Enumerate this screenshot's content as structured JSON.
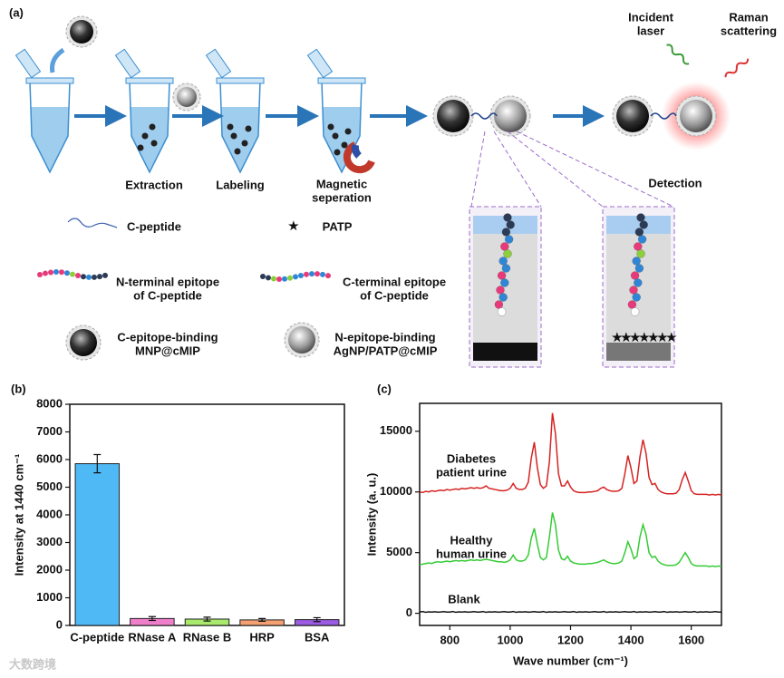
{
  "panel_a": {
    "label": "(a)",
    "texts": [
      [
        "Extraction"
      ],
      [
        "Labeling"
      ],
      [
        "Magnetic",
        "seperation"
      ],
      [
        "Detection"
      ],
      [
        "Incident",
        "laser"
      ],
      [
        "Raman",
        "scattering"
      ],
      [
        "C-peptide"
      ],
      [
        "PATP"
      ],
      [
        "N-terminal epitope",
        "of C-peptide"
      ],
      [
        "C-terminal epitope",
        "of C-peptide"
      ],
      [
        "C-epitope-binding",
        "MNP@cMIP"
      ],
      [
        "N-epitope-binding",
        "AgNP/PATP@cMIP"
      ]
    ]
  },
  "watermark": "大数跨境",
  "chart_data": [
    {
      "type": "bar",
      "label": "(b)",
      "y_label": "Intensity at 1440 cm⁻¹",
      "categories": [
        "C-peptide",
        "RNase A",
        "RNase B",
        "HRP",
        "BSA"
      ],
      "values": [
        5850,
        250,
        230,
        200,
        210
      ],
      "errors": [
        330,
        70,
        70,
        50,
        70
      ],
      "colors": [
        "#4fb9f6",
        "#f07fcb",
        "#a9e96c",
        "#f5a072",
        "#9b5be2"
      ],
      "ylim": [
        0,
        8000
      ],
      "yticks": [
        0,
        1000,
        2000,
        3000,
        4000,
        5000,
        6000,
        7000,
        8000
      ]
    },
    {
      "type": "line",
      "label": "(c)",
      "y_label": "Intensity (a. u.)",
      "x_label": "Wave number (cm⁻¹)",
      "xlim": [
        700,
        1700
      ],
      "xticks": [
        800,
        1000,
        1200,
        1400,
        1600
      ],
      "ylim": [
        -1000,
        17300
      ],
      "yticks": [
        0,
        5000,
        10000,
        15000
      ],
      "annotations": [
        [
          "Diabetes",
          "patient urine"
        ],
        [
          "Healthy",
          "human urine"
        ],
        [
          "Blank"
        ]
      ],
      "x": [
        700,
        710,
        720,
        730,
        740,
        750,
        760,
        770,
        780,
        790,
        800,
        810,
        820,
        830,
        840,
        850,
        860,
        870,
        880,
        890,
        900,
        910,
        920,
        930,
        940,
        950,
        960,
        970,
        980,
        990,
        1000,
        1010,
        1020,
        1030,
        1040,
        1050,
        1060,
        1070,
        1080,
        1090,
        1100,
        1110,
        1120,
        1130,
        1140,
        1150,
        1160,
        1170,
        1180,
        1190,
        1200,
        1210,
        1220,
        1230,
        1240,
        1250,
        1260,
        1270,
        1280,
        1290,
        1300,
        1310,
        1320,
        1330,
        1340,
        1350,
        1360,
        1370,
        1380,
        1390,
        1400,
        1410,
        1420,
        1430,
        1440,
        1450,
        1460,
        1470,
        1480,
        1490,
        1500,
        1510,
        1520,
        1530,
        1540,
        1550,
        1560,
        1570,
        1580,
        1590,
        1600,
        1610,
        1620,
        1630,
        1640,
        1650,
        1660,
        1670,
        1680,
        1690,
        1700
      ],
      "series": [
        {
          "color": "#d62222",
          "values": [
            10000,
            9950,
            10050,
            10000,
            10100,
            10050,
            10100,
            10150,
            10100,
            10200,
            10150,
            10200,
            10250,
            10200,
            10300,
            10250,
            10300,
            10350,
            10300,
            10350,
            10300,
            10350,
            10500,
            10300,
            10250,
            10200,
            10150,
            10100,
            10100,
            10150,
            10300,
            10700,
            10300,
            10200,
            10200,
            10300,
            10800,
            12800,
            14100,
            12000,
            10600,
            10300,
            10500,
            12500,
            16500,
            14800,
            11500,
            10500,
            10500,
            10900,
            10400,
            10100,
            10000,
            9950,
            9950,
            9950,
            10000,
            10000,
            10050,
            10100,
            10300,
            10400,
            10200,
            10100,
            10050,
            10050,
            10100,
            10300,
            11500,
            13000,
            12000,
            10700,
            10900,
            12900,
            14300,
            13200,
            11200,
            10600,
            10700,
            10200,
            10000,
            9900,
            9850,
            9850,
            9850,
            9900,
            10200,
            11000,
            11600,
            10900,
            10100,
            9850,
            9800,
            9800,
            9800,
            9800,
            9750,
            9800,
            9750,
            9800,
            9750
          ]
        },
        {
          "color": "#35cc35",
          "values": [
            4000,
            4050,
            4100,
            4150,
            4100,
            4200,
            4250,
            4200,
            4250,
            4300,
            4250,
            4300,
            4350,
            4300,
            4350,
            4300,
            4350,
            4400,
            4350,
            4400,
            4350,
            4400,
            4450,
            4400,
            4350,
            4300,
            4250,
            4250,
            4200,
            4250,
            4400,
            4800,
            4400,
            4300,
            4300,
            4400,
            4800,
            6200,
            7000,
            5700,
            4600,
            4400,
            4600,
            6300,
            8300,
            7300,
            5200,
            4500,
            4400,
            4700,
            4300,
            4150,
            4100,
            4050,
            4050,
            4050,
            4100,
            4100,
            4150,
            4200,
            4300,
            4400,
            4250,
            4150,
            4100,
            4100,
            4150,
            4300,
            5000,
            5900,
            5300,
            4500,
            4700,
            6300,
            7300,
            6500,
            5000,
            4600,
            4700,
            4300,
            4100,
            4000,
            3950,
            3950,
            3950,
            4000,
            4200,
            4600,
            5000,
            4600,
            4100,
            3950,
            3900,
            3900,
            3900,
            3900,
            3850,
            3900,
            3850,
            3900,
            3850
          ]
        },
        {
          "color": "#111111",
          "values": [
            100,
            150,
            80,
            120,
            100,
            130,
            90,
            110,
            140,
            100,
            100,
            150,
            80,
            120,
            100,
            130,
            90,
            110,
            140,
            100,
            100,
            150,
            80,
            120,
            100,
            130,
            90,
            110,
            140,
            100,
            100,
            150,
            80,
            120,
            100,
            130,
            90,
            110,
            140,
            100,
            100,
            150,
            80,
            120,
            100,
            130,
            90,
            110,
            140,
            100,
            100,
            150,
            80,
            120,
            100,
            130,
            90,
            110,
            140,
            100,
            100,
            150,
            80,
            120,
            100,
            130,
            90,
            110,
            140,
            100,
            100,
            150,
            80,
            120,
            100,
            130,
            90,
            110,
            140,
            100,
            100,
            150,
            80,
            120,
            100,
            130,
            90,
            110,
            140,
            100,
            100,
            150,
            80,
            120,
            100,
            130,
            90,
            110,
            140,
            100,
            100
          ]
        }
      ]
    }
  ]
}
